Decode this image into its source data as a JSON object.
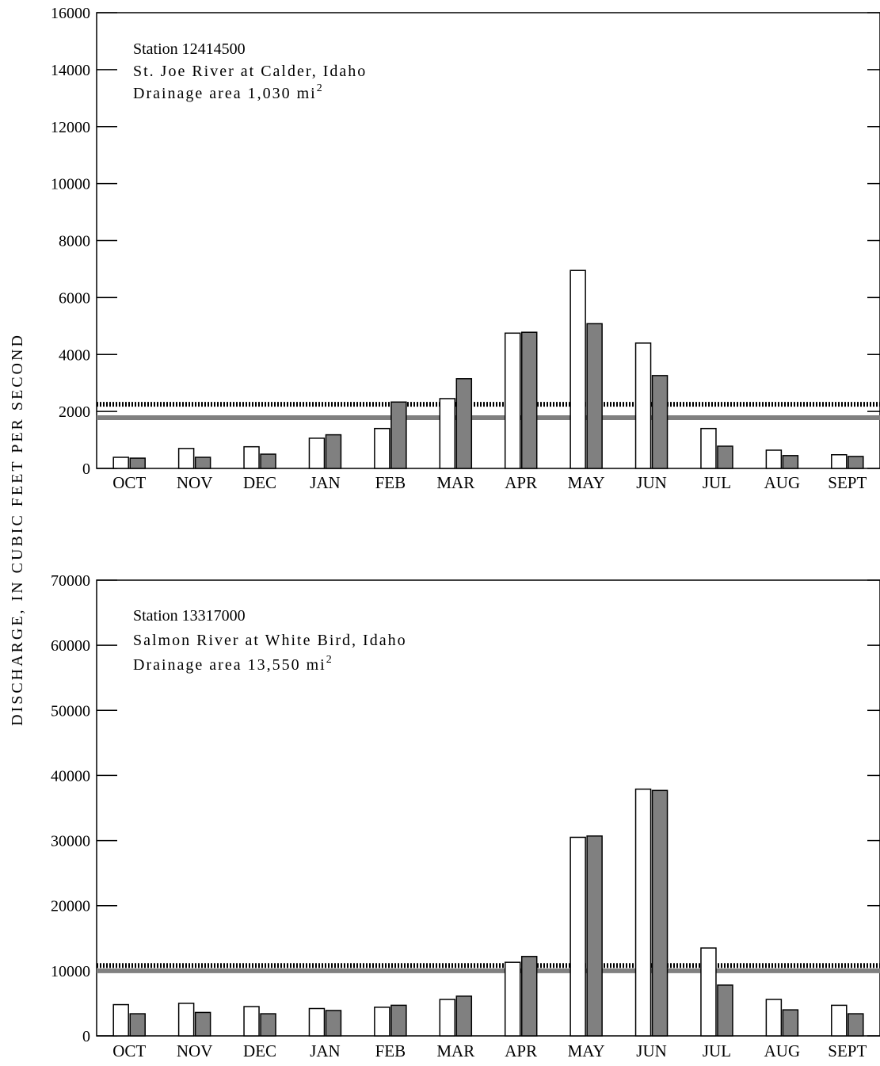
{
  "ylabel": "DISCHARGE, IN CUBIC FEET PER SECOND",
  "colors": {
    "bar_a": "#ffffff",
    "bar_b": "#808080",
    "line_solid": "#808080",
    "line_dotted": "#000000",
    "axis": "#000000"
  },
  "chart_data": [
    {
      "type": "bar",
      "annotation": {
        "line1": "Station 12414500",
        "line2": "St. Joe River at Calder, Idaho",
        "line3": "Drainage area 1,030 mi",
        "line3_sup": "2"
      },
      "categories": [
        "OCT",
        "NOV",
        "DEC",
        "JAN",
        "FEB",
        "MAR",
        "APR",
        "MAY",
        "JUN",
        "JUL",
        "AUG",
        "SEPT"
      ],
      "series": [
        {
          "values": [
            390,
            700,
            760,
            1060,
            1400,
            2450,
            4750,
            6950,
            4400,
            1400,
            640,
            480
          ]
        },
        {
          "values": [
            360,
            390,
            500,
            1180,
            2330,
            3150,
            4780,
            5080,
            3260,
            780,
            450,
            420
          ]
        }
      ],
      "reference_lines": [
        {
          "style": "dotted",
          "value": 2250
        },
        {
          "style": "solid",
          "value": 1780
        }
      ],
      "ylim": [
        0,
        16000
      ],
      "yticks": [
        "0",
        "2000",
        "4000",
        "6000",
        "8000",
        "10000",
        "12000",
        "14000",
        "16000"
      ],
      "ytick_values": [
        0,
        2000,
        4000,
        6000,
        8000,
        10000,
        12000,
        14000,
        16000
      ]
    },
    {
      "type": "bar",
      "annotation": {
        "line1": "Station 13317000",
        "line2": "Salmon River at White Bird, Idaho",
        "line3": "Drainage area 13,550 mi",
        "line3_sup": "2"
      },
      "categories": [
        "OCT",
        "NOV",
        "DEC",
        "JAN",
        "FEB",
        "MAR",
        "APR",
        "MAY",
        "JUN",
        "JUL",
        "AUG",
        "SEPT"
      ],
      "series": [
        {
          "values": [
            4800,
            5000,
            4500,
            4200,
            4400,
            5600,
            11300,
            30500,
            37900,
            13500,
            5600,
            4700
          ]
        },
        {
          "values": [
            3400,
            3600,
            3400,
            3900,
            4700,
            6100,
            12200,
            30700,
            37700,
            7800,
            4000,
            3400
          ]
        }
      ],
      "reference_lines": [
        {
          "style": "dotted",
          "value": 10800
        },
        {
          "style": "solid",
          "value": 10000
        }
      ],
      "ylim": [
        0,
        70000
      ],
      "yticks": [
        "0",
        "10000",
        "20000",
        "30000",
        "40000",
        "50000",
        "60000",
        "70000"
      ],
      "ytick_values": [
        0,
        10000,
        20000,
        30000,
        40000,
        50000,
        60000,
        70000
      ]
    }
  ]
}
